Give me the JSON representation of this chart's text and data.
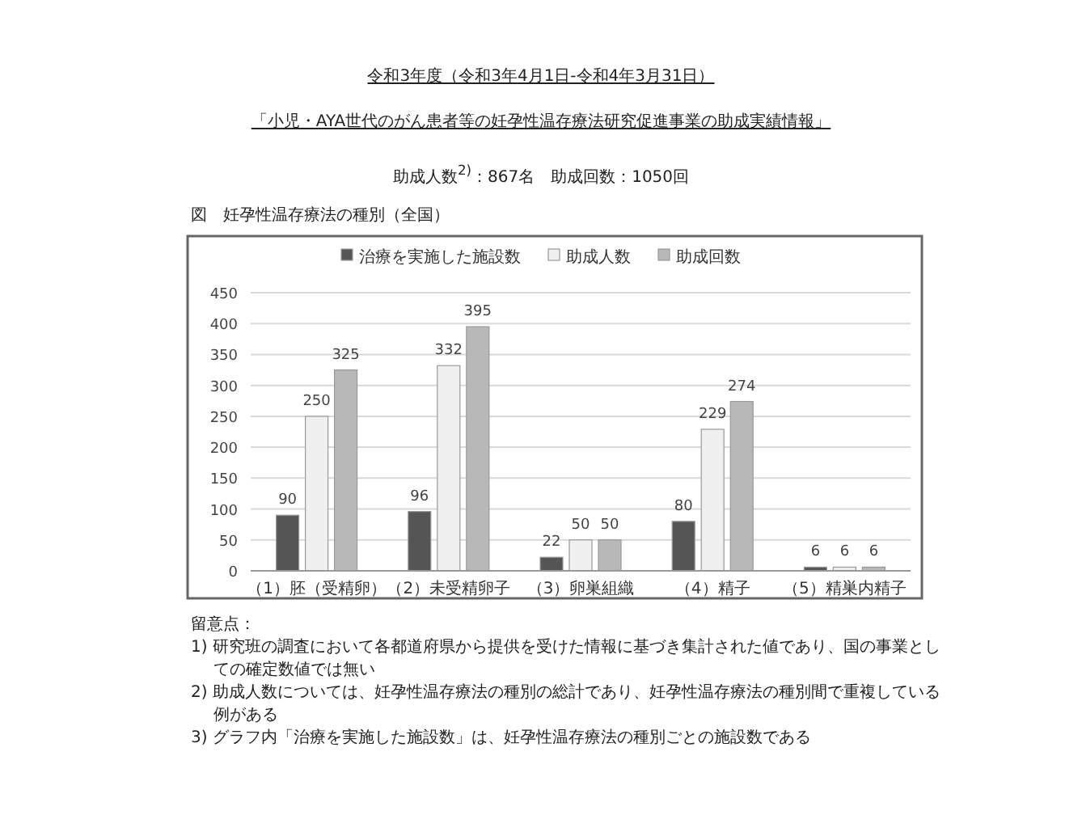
{
  "chart_data": {
    "type": "bar",
    "title": "令和3年度（令和3年4月1日-令和4年3月31日）",
    "subtitle": "「小児・AYA世代のがん患者等の妊孕性温存療法研究促進事業の助成実績情報」",
    "annotations": [
      "助成人数$^{2)}$：867名　助成回数：1050回",
      "図　妊孕性温存療法の種別（全国）",
      "留意点：",
      "1) 研究班の調査において各都道府県から提供を受けた情報に基づき集計された値であり、国の事業としての確定数値では無い",
      "2) 助成人数については、妊孕性温存療法の種別の総計であり、妊孕性温存療法の種別間で重複している例がある",
      "3) グラフ内「治療を実施した施設数」は、妊孕性温存療法の種別ごとの施設数である"
    ],
    "categories": [
      "（1）胚（受精卵）",
      "（2）未受精卵子",
      "（3）卵巣組織",
      "（4）精子",
      "（5）精巣内精子"
    ],
    "series": [
      {
        "name": "治療を実施した施設数",
        "color": "#555555",
        "values": [
          90,
          96,
          22,
          80,
          6
        ]
      },
      {
        "name": "助成人数",
        "color": "#f0f0f0",
        "values": [
          250,
          332,
          50,
          229,
          6
        ]
      },
      {
        "name": "助成回数",
        "color": "#b8b8b8",
        "values": [
          325,
          395,
          50,
          274,
          6
        ]
      }
    ],
    "ylim": [
      0,
      450
    ],
    "yticks": [
      0,
      50,
      100,
      150,
      200,
      250,
      300,
      350,
      400,
      450
    ],
    "grid": "y",
    "legend": "top",
    "data_labels": true
  }
}
